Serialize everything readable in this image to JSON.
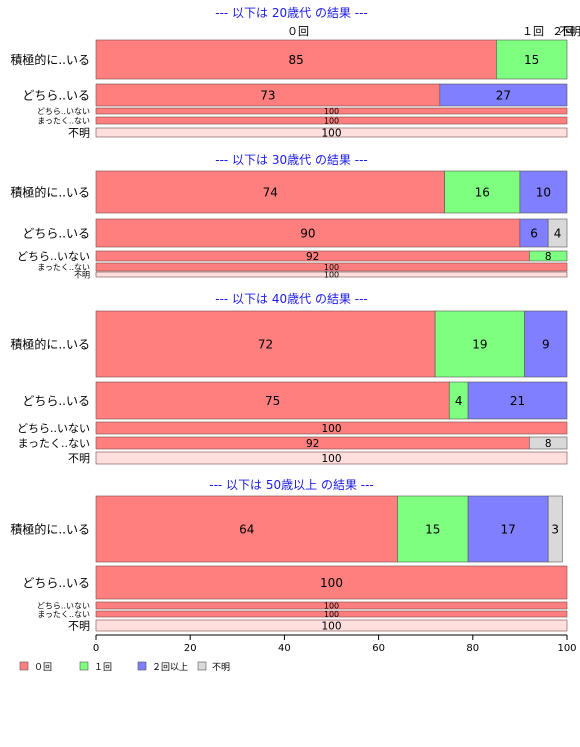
{
  "chart_data": {
    "type": "bar",
    "orientation": "horizontal-stacked-100",
    "xlim": [
      0,
      100
    ],
    "xticks": [
      "0",
      "20",
      "40",
      "60",
      "80",
      "100"
    ],
    "top_labels": [
      "０回",
      "１回",
      "２回",
      "不明"
    ],
    "legend": {
      "placement": "bottom-left",
      "entries": [
        {
          "name": "０回",
          "color": "#ff7f7f"
        },
        {
          "name": "１回",
          "color": "#7fff7f"
        },
        {
          "name": "２回以上",
          "color": "#7f7fff"
        },
        {
          "name": "不明",
          "color": "#d9d9d9"
        }
      ]
    },
    "groups": [
      {
        "title": "--- 以下は 20歳代 の結果 ---",
        "rows": [
          {
            "label": "積極的に..いる",
            "values": [
              85,
              15,
              0,
              0
            ]
          },
          {
            "label": "どちら..いる",
            "values": [
              73,
              0,
              27,
              0
            ]
          },
          {
            "label": "どちら..いない",
            "values": [
              100,
              0,
              0,
              0
            ]
          },
          {
            "label": "まったく..ない",
            "values": [
              100,
              0,
              0,
              0
            ]
          },
          {
            "label": "不明",
            "values": [
              0,
              0,
              0,
              100
            ]
          }
        ]
      },
      {
        "title": "--- 以下は 30歳代 の結果 ---",
        "rows": [
          {
            "label": "積極的に..いる",
            "values": [
              74,
              16,
              10,
              0
            ]
          },
          {
            "label": "どちら..いる",
            "values": [
              90,
              0,
              6,
              4
            ]
          },
          {
            "label": "どちら..いない",
            "values": [
              92,
              8,
              0,
              0
            ]
          },
          {
            "label": "まったく..ない",
            "values": [
              100,
              0,
              0,
              0
            ]
          },
          {
            "label": "不明",
            "values": [
              0,
              0,
              0,
              100
            ]
          }
        ]
      },
      {
        "title": "--- 以下は 40歳代 の結果 ---",
        "rows": [
          {
            "label": "積極的に..いる",
            "values": [
              72,
              19,
              9,
              0
            ]
          },
          {
            "label": "どちら..いる",
            "values": [
              75,
              4,
              21,
              0
            ]
          },
          {
            "label": "どちら..いない",
            "values": [
              100,
              0,
              0,
              0
            ]
          },
          {
            "label": "まったく..ない",
            "values": [
              92,
              0,
              0,
              8
            ]
          },
          {
            "label": "不明",
            "values": [
              0,
              0,
              0,
              100
            ]
          }
        ]
      },
      {
        "title": "--- 以下は 50歳以上 の結果 ---",
        "rows": [
          {
            "label": "積極的に..いる",
            "values": [
              64,
              15,
              17,
              3
            ]
          },
          {
            "label": "どちら..いる",
            "values": [
              100,
              0,
              0,
              0
            ]
          },
          {
            "label": "どちら..いない",
            "values": [
              100,
              0,
              0,
              0
            ]
          },
          {
            "label": "まったく..ない",
            "values": [
              100,
              0,
              0,
              0
            ]
          },
          {
            "label": "不明",
            "values": [
              0,
              0,
              0,
              100
            ]
          }
        ]
      }
    ]
  }
}
